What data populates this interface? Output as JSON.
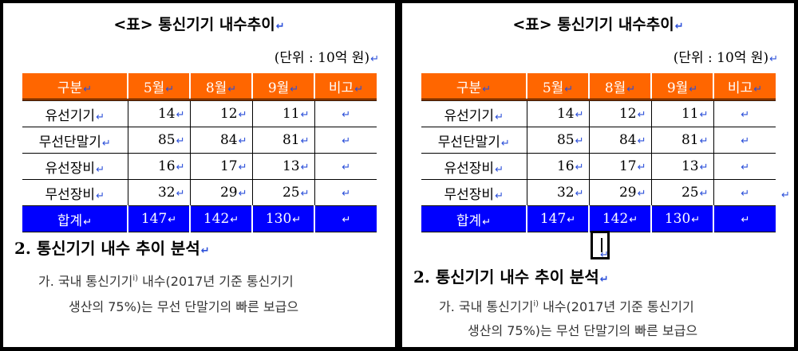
{
  "doc": {
    "title": "<표> 통신기기 내수추이",
    "unit": "(단위 : 10억 원)",
    "para_mark": "↵",
    "table": {
      "headers": [
        "구분",
        "5월",
        "8월",
        "9월",
        "비고"
      ],
      "rows": [
        [
          "유선기기",
          "14",
          "12",
          "11",
          ""
        ],
        [
          "무선단말기",
          "85",
          "84",
          "81",
          ""
        ],
        [
          "유선장비",
          "16",
          "17",
          "13",
          ""
        ],
        [
          "무선장비",
          "32",
          "29",
          "25",
          ""
        ]
      ],
      "total": [
        "합계",
        "147",
        "142",
        "130",
        ""
      ]
    },
    "heading": "2. 통신기기 내수 추이 분석",
    "body_line1_prefix": "가. 국내 통신기기",
    "footnote_ref": "i)",
    "body_line1_suffix": " 내수(2017년 기준 통신기기",
    "body_line2": "생산의 75%)는 무선 단말기의 빠른 보급으"
  },
  "colors": {
    "header_bg": "#ff6600",
    "total_bg": "#0000ff",
    "para_mark": "#2b4fd9"
  }
}
